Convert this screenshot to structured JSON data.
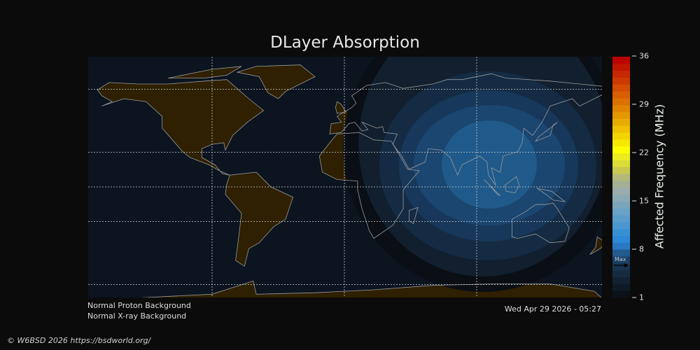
{
  "title": "DLayer Absorption",
  "status": {
    "proton": "Normal Proton Background",
    "xray": "Normal X-ray Background",
    "timestamp": "Wed Apr 29 2026 - 05:27"
  },
  "footer": "© W6BSD 2026 https://bsdworld.org/",
  "colorbar": {
    "label": "Affected Frequency (MHz)",
    "min": 1,
    "max": 36,
    "ticks": [
      "36",
      "29",
      "22",
      "15",
      "8",
      "1"
    ],
    "max_marker_label": "Max",
    "max_marker_value": 5.7
  },
  "colors": {
    "background": "#0b0b0b",
    "night_ocean": "#0c1420",
    "night_land": "#2e2000",
    "coastline": "#9a9a9a",
    "absorption_levels": [
      "#0a0e15",
      "#111f2e",
      "#142b43",
      "#17385a",
      "#1a4670",
      "#1f5a8a"
    ]
  }
}
